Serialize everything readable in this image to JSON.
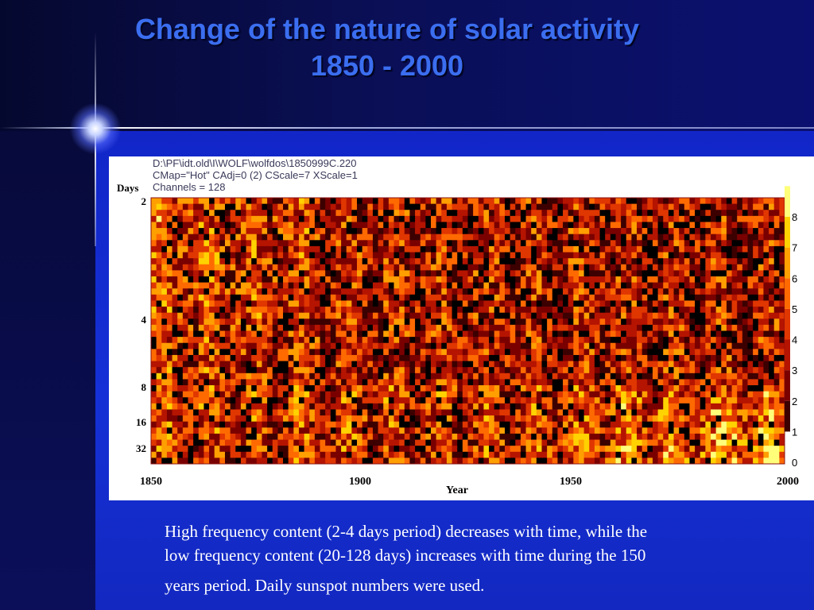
{
  "slide": {
    "title_line1": "Change of the nature of solar activity",
    "title_line2": "1850 - 2000",
    "caption_line1": "High frequency content (2-4 days period) decreases with time, while the",
    "caption_line2": "low frequency content (20-128 days) increases with time during the 150",
    "caption_line3": "years period. Daily sunspot numbers were used."
  },
  "colors": {
    "title": "#3b6ef0",
    "background": "#1430d6",
    "cmap_hot": [
      "#000000",
      "#3c0000",
      "#7a0000",
      "#b51400",
      "#e03600",
      "#ff6a00",
      "#ff9f00",
      "#ffd200",
      "#ffff7a"
    ]
  },
  "chart_data": {
    "type": "heatmap",
    "header_lines": [
      "D:\\PF\\idt.old\\I\\WOLF\\wolfdos\\1850999C.220",
      "CMap=\"Hot\" CAdj=0 (2) CScale=7 XScale=1",
      "Channels = 128"
    ],
    "xlabel": "Year",
    "ylabel": "Days",
    "x_ticks": [
      "1850",
      "1900",
      "1950",
      "2000"
    ],
    "x_range": [
      1850,
      2000
    ],
    "y_ticks": [
      "2",
      "4",
      "8",
      "16",
      "32"
    ],
    "y_scale": "log2",
    "colorbar_ticks": [
      "0",
      "1",
      "2",
      "3",
      "4",
      "5",
      "6",
      "7",
      "8"
    ],
    "colorbar_range": [
      0,
      8
    ],
    "colormap": "Hot",
    "trend": "High-period band (bottom) brightens after ~1935; low-period band (top) is brighter before 1900"
  }
}
